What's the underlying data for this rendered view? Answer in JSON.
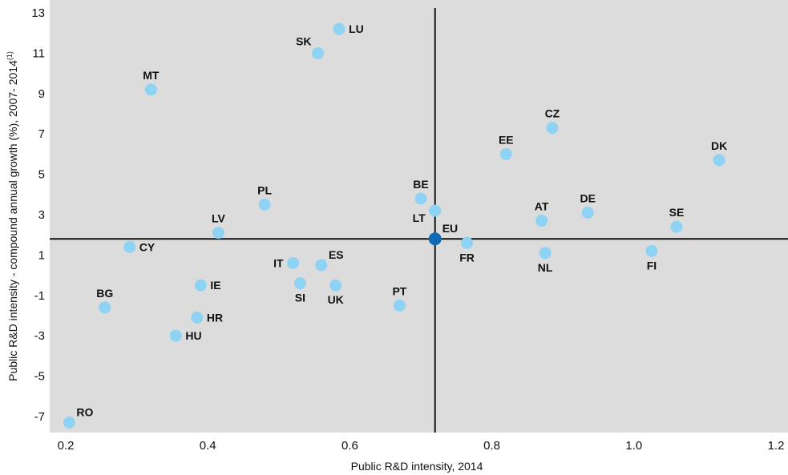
{
  "chart_data": {
    "type": "scatter",
    "title": "",
    "xlabel": "Public R&D intensity, 2014",
    "ylabel": "Public R&D intensity - compound annual growth (%), 2007- 2014",
    "ylabel_sup": "(1)",
    "xlim": [
      0.2,
      1.2
    ],
    "ylim": [
      -7.5,
      13.5
    ],
    "xticks": [
      "0.2",
      "0.4",
      "0.6",
      "0.8",
      "1.0",
      "1.2"
    ],
    "yticks": [
      "13",
      "11",
      "9",
      "7",
      "5",
      "3",
      "1",
      "-1",
      "-3",
      "-5",
      "-7"
    ],
    "reference_lines": {
      "x": 0.72,
      "y": 1.8
    },
    "grid": false,
    "colors": {
      "background": "#dcdcdc",
      "point": "#8ed3f4",
      "highlight": "#0c6bb3",
      "axis_lines": "#111111"
    },
    "points": [
      {
        "label": "LU",
        "x": 0.585,
        "y": 12.2,
        "pos": "right"
      },
      {
        "label": "SK",
        "x": 0.555,
        "y": 11.0,
        "pos": "upper-left"
      },
      {
        "label": "MT",
        "x": 0.32,
        "y": 9.2,
        "pos": "top"
      },
      {
        "label": "CZ",
        "x": 0.885,
        "y": 7.3,
        "pos": "top"
      },
      {
        "label": "EE",
        "x": 0.82,
        "y": 6.0,
        "pos": "top"
      },
      {
        "label": "DK",
        "x": 1.12,
        "y": 5.7,
        "pos": "top"
      },
      {
        "label": "BE",
        "x": 0.7,
        "y": 3.8,
        "pos": "top"
      },
      {
        "label": "PL",
        "x": 0.48,
        "y": 3.5,
        "pos": "top"
      },
      {
        "label": "LT",
        "x": 0.72,
        "y": 3.2,
        "pos": "lower-left"
      },
      {
        "label": "DE",
        "x": 0.935,
        "y": 3.1,
        "pos": "top"
      },
      {
        "label": "AT",
        "x": 0.87,
        "y": 2.7,
        "pos": "top"
      },
      {
        "label": "SE",
        "x": 1.06,
        "y": 2.4,
        "pos": "top"
      },
      {
        "label": "LV",
        "x": 0.415,
        "y": 2.1,
        "pos": "top"
      },
      {
        "label": "EU",
        "x": 0.72,
        "y": 1.8,
        "pos": "upper-right",
        "highlight": true
      },
      {
        "label": "FR",
        "x": 0.765,
        "y": 1.6,
        "pos": "bottom"
      },
      {
        "label": "CY",
        "x": 0.29,
        "y": 1.4,
        "pos": "right"
      },
      {
        "label": "FI",
        "x": 1.025,
        "y": 1.2,
        "pos": "bottom"
      },
      {
        "label": "NL",
        "x": 0.875,
        "y": 1.1,
        "pos": "bottom"
      },
      {
        "label": "IT",
        "x": 0.52,
        "y": 0.6,
        "pos": "left"
      },
      {
        "label": "ES",
        "x": 0.56,
        "y": 0.5,
        "pos": "upper-right"
      },
      {
        "label": "SI",
        "x": 0.53,
        "y": -0.4,
        "pos": "bottom"
      },
      {
        "label": "IE",
        "x": 0.39,
        "y": -0.5,
        "pos": "right"
      },
      {
        "label": "UK",
        "x": 0.58,
        "y": -0.5,
        "pos": "bottom"
      },
      {
        "label": "PT",
        "x": 0.67,
        "y": -1.5,
        "pos": "top"
      },
      {
        "label": "BG",
        "x": 0.255,
        "y": -1.6,
        "pos": "top"
      },
      {
        "label": "HR",
        "x": 0.385,
        "y": -2.1,
        "pos": "right"
      },
      {
        "label": "HU",
        "x": 0.355,
        "y": -3.0,
        "pos": "right"
      },
      {
        "label": "RO",
        "x": 0.205,
        "y": -7.3,
        "pos": "upper-right"
      }
    ]
  }
}
